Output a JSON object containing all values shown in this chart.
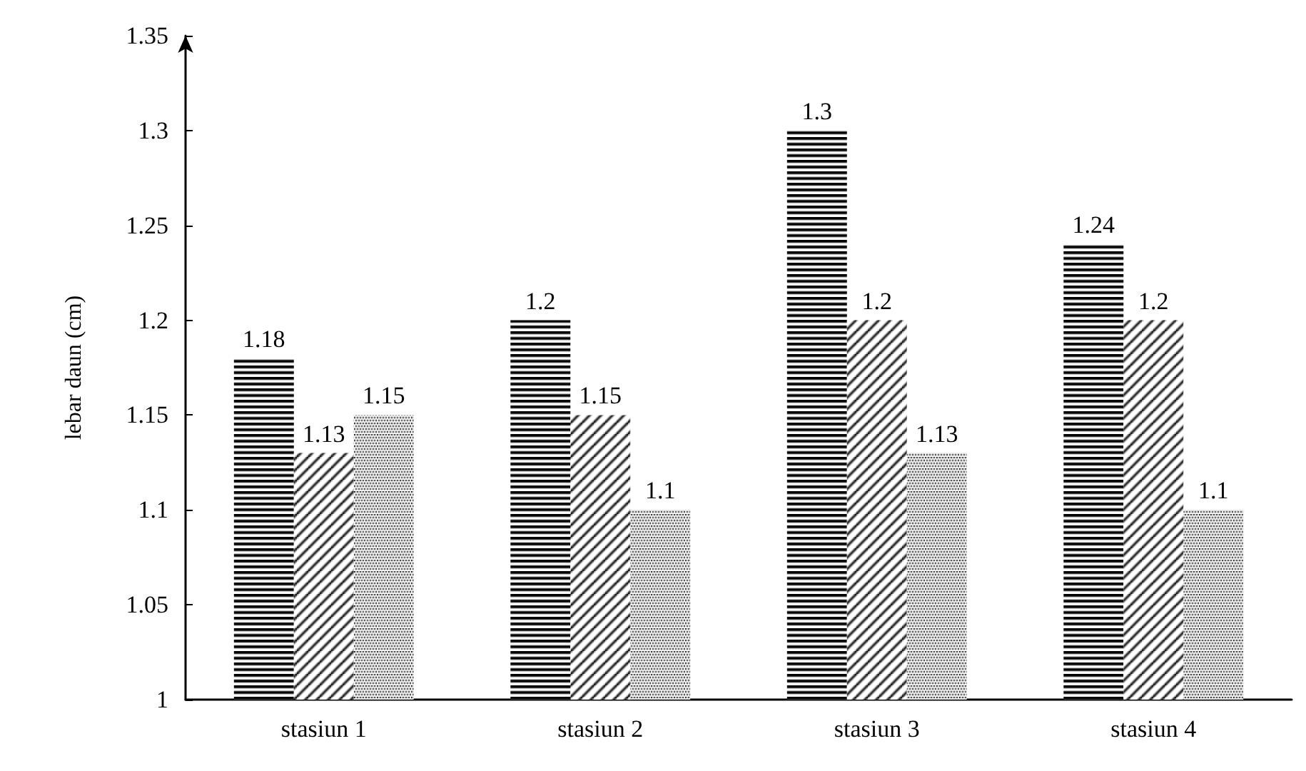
{
  "chart_data": {
    "type": "bar",
    "ylabel": "lebar daun (cm)",
    "categories": [
      "stasiun 1",
      "stasiun 2",
      "stasiun 3",
      "stasiun 4"
    ],
    "series": [
      {
        "color": "#000000",
        "values": [
          1.18,
          1.2,
          1.3,
          1.24
        ]
      },
      {
        "color": "#000000",
        "values": [
          1.13,
          1.15,
          1.2,
          1.2
        ]
      },
      {
        "color": "#000000",
        "values": [
          1.15,
          1.1,
          1.13,
          1.1
        ]
      }
    ],
    "ylim": [
      1,
      1.35
    ],
    "yticks": [
      1,
      1.05,
      1.1,
      1.15,
      1.2,
      1.25,
      1.3,
      1.35
    ],
    "grid": false,
    "data_labels": true
  }
}
